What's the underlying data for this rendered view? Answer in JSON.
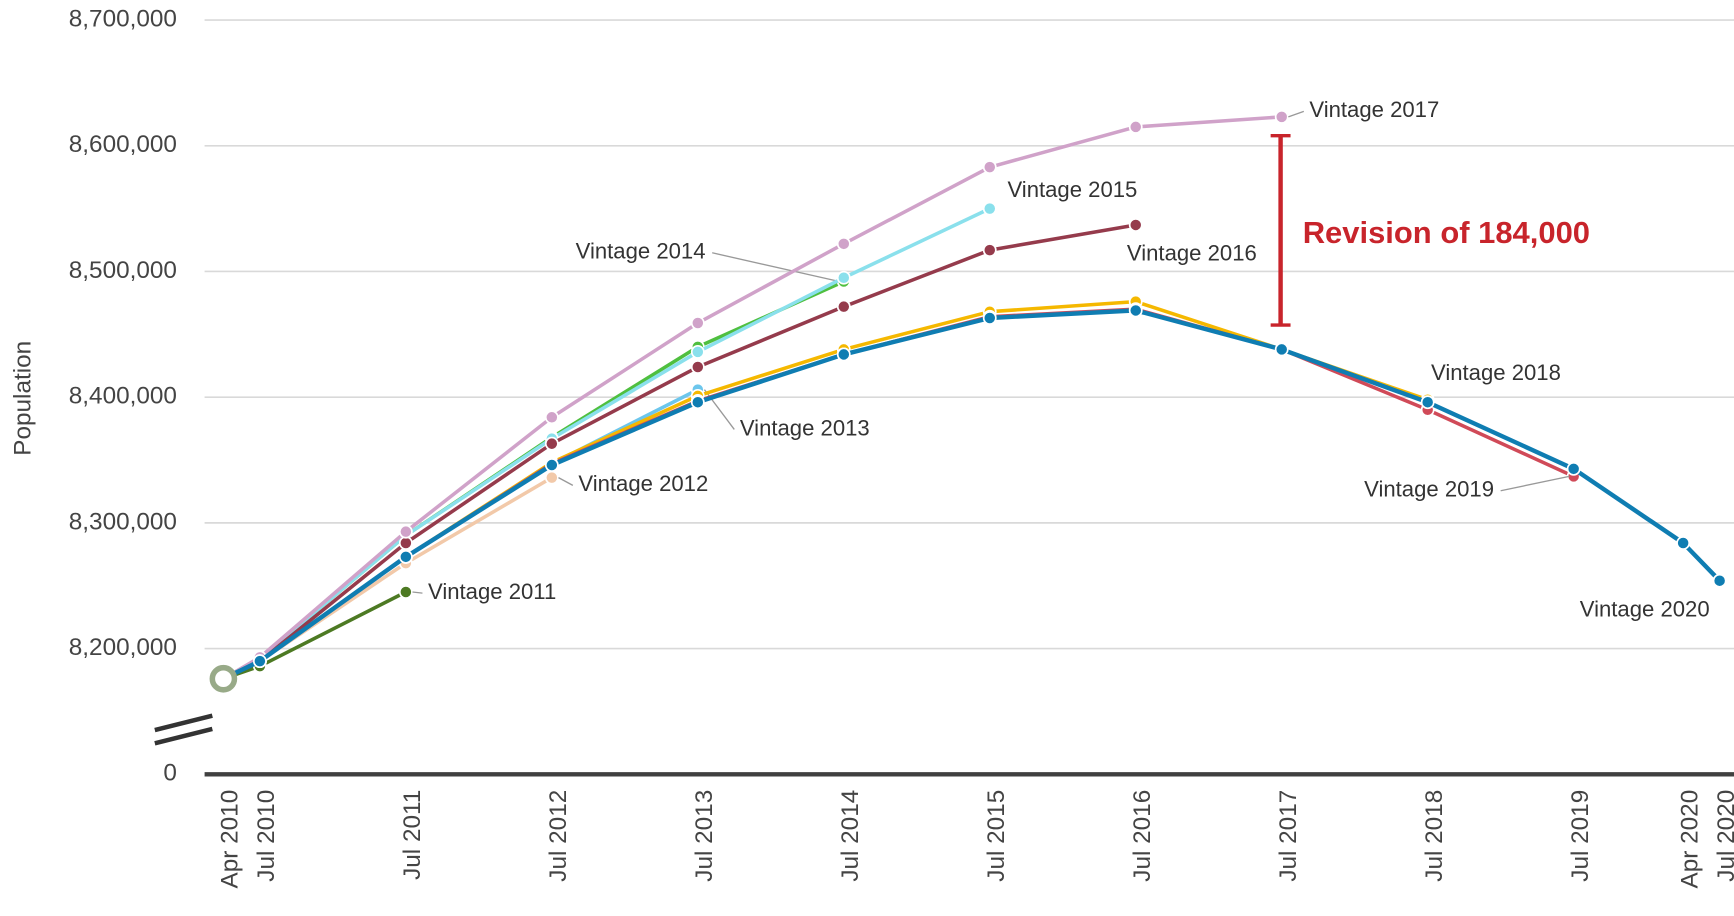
{
  "chart_data": {
    "type": "line",
    "y_label": "Population",
    "categories": [
      "Apr 2010",
      "Jul 2010",
      "Jul 2011",
      "Jul 2012",
      "Jul 2013",
      "Jul 2014",
      "Jul 2015",
      "Jul 2016",
      "Jul 2017",
      "Jul 2018",
      "Jul 2019",
      "Apr 2020",
      "Jul 2020"
    ],
    "ylim": [
      0,
      8700000
    ],
    "y_break": [
      0,
      8100000
    ],
    "yticks": [
      0,
      {
        "value": 8200000,
        "label": "8,200,000"
      },
      {
        "value": 8300000,
        "label": "8,300,000"
      },
      {
        "value": 8400000,
        "label": "8,400,000"
      },
      {
        "value": 8500000,
        "label": "8,500,000"
      },
      {
        "value": 8600000,
        "label": "8,600,000"
      },
      {
        "value": 8700000,
        "label": "8,700,000"
      }
    ],
    "grid": true,
    "annotation": "Revision of 184,000",
    "series": [
      {
        "name": "Vintage 2011",
        "color": "#4d7a23",
        "values": [
          8176000,
          8186000,
          8245000,
          null,
          null,
          null,
          null,
          null,
          null,
          null,
          null,
          null,
          null
        ]
      },
      {
        "name": "Vintage 2012",
        "color": "#f2c9a9",
        "values": [
          8176000,
          8190000,
          8268000,
          8336000,
          null,
          null,
          null,
          null,
          null,
          null,
          null,
          null,
          null
        ]
      },
      {
        "name": "Vintage 2013",
        "color": "#6cc6ec",
        "values": [
          8176000,
          8190000,
          8273000,
          8347000,
          8406000,
          null,
          null,
          null,
          null,
          null,
          null,
          null,
          null
        ]
      },
      {
        "name": "Vintage 2014",
        "color": "#4fbf3f",
        "values": [
          8176000,
          8192000,
          8290000,
          8368000,
          8440000,
          8492000,
          null,
          null,
          null,
          null,
          null,
          null,
          null
        ]
      },
      {
        "name": "Vintage 2015",
        "color": "#8ae0ec",
        "values": [
          8176000,
          8192000,
          8290000,
          8367000,
          8436000,
          8495000,
          8550000,
          null,
          null,
          null,
          null,
          null,
          null
        ]
      },
      {
        "name": "Vintage 2016",
        "color": "#953b4c",
        "values": [
          8176000,
          8190000,
          8284000,
          8363000,
          8424000,
          8472000,
          8517000,
          8537000,
          null,
          null,
          null,
          null,
          null
        ]
      },
      {
        "name": "Vintage 2017",
        "color": "#d0a2c9",
        "values": [
          8176000,
          8193000,
          8293000,
          8384000,
          8459000,
          8522000,
          8583000,
          8615000,
          8623000,
          null,
          null,
          null,
          null
        ]
      },
      {
        "name": "Vintage 2018",
        "color": "#f5b800",
        "values": [
          8176000,
          8190000,
          8273000,
          8348000,
          8401000,
          8438000,
          8468000,
          8476000,
          8438000,
          8398000,
          null,
          null,
          null
        ]
      },
      {
        "name": "Vintage 2019",
        "color": "#d04a58",
        "values": [
          8176000,
          8190000,
          8273000,
          8347000,
          8397000,
          8434000,
          8464000,
          8470000,
          8438000,
          8390000,
          8337000,
          null,
          null
        ]
      },
      {
        "name": "Vintage 2020",
        "color": "#0f7db2",
        "values": [
          8176000,
          8190000,
          8273000,
          8346000,
          8396000,
          8434000,
          8463000,
          8469000,
          8438000,
          8396000,
          8343000,
          8284000,
          8254000
        ]
      }
    ]
  }
}
